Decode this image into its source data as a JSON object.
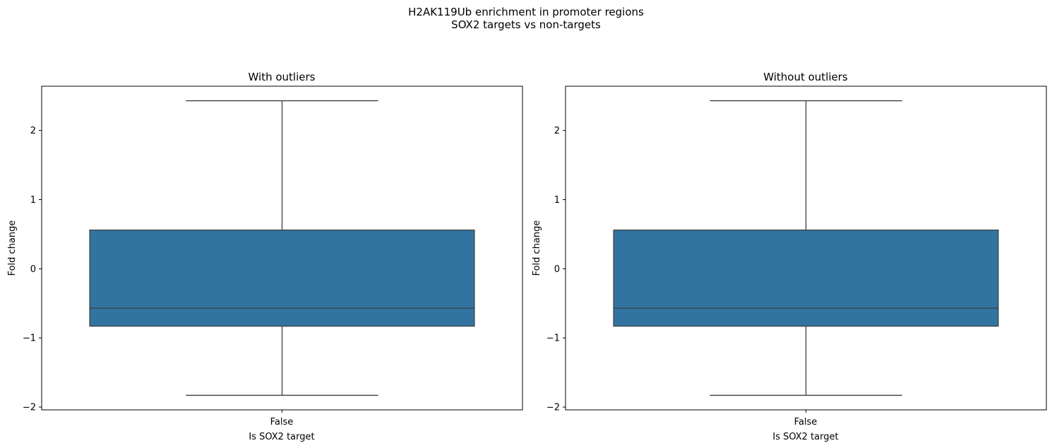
{
  "figure": {
    "title_lines": [
      "H2AK119Ub enrichment in promoter regions",
      "SOX2 targets vs non-targets"
    ]
  },
  "chart_data": [
    {
      "type": "box",
      "title": "With outliers",
      "xlabel": "Is SOX2 target",
      "ylabel": "Fold change",
      "categories": [
        "False"
      ],
      "series": [
        {
          "category": "False",
          "whisker_low": -1.83,
          "q1": -0.83,
          "median": -0.57,
          "q3": 0.56,
          "whisker_high": 2.43,
          "color": "#3274a1"
        }
      ],
      "ylim": [
        -2.04,
        2.64
      ],
      "yticks": [
        {
          "value": -2,
          "label": "−2"
        },
        {
          "value": -1,
          "label": "−1"
        },
        {
          "value": 0,
          "label": "0"
        },
        {
          "value": 1,
          "label": "1"
        },
        {
          "value": 2,
          "label": "2"
        }
      ],
      "grid": false
    },
    {
      "type": "box",
      "title": "Without outliers",
      "xlabel": "Is SOX2 target",
      "ylabel": "Fold change",
      "categories": [
        "False"
      ],
      "series": [
        {
          "category": "False",
          "whisker_low": -1.83,
          "q1": -0.83,
          "median": -0.57,
          "q3": 0.56,
          "whisker_high": 2.43,
          "color": "#3274a1"
        }
      ],
      "ylim": [
        -2.04,
        2.64
      ],
      "yticks": [
        {
          "value": -2,
          "label": "−2"
        },
        {
          "value": -1,
          "label": "−1"
        },
        {
          "value": 0,
          "label": "0"
        },
        {
          "value": 1,
          "label": "1"
        },
        {
          "value": 2,
          "label": "2"
        }
      ],
      "grid": false
    }
  ]
}
